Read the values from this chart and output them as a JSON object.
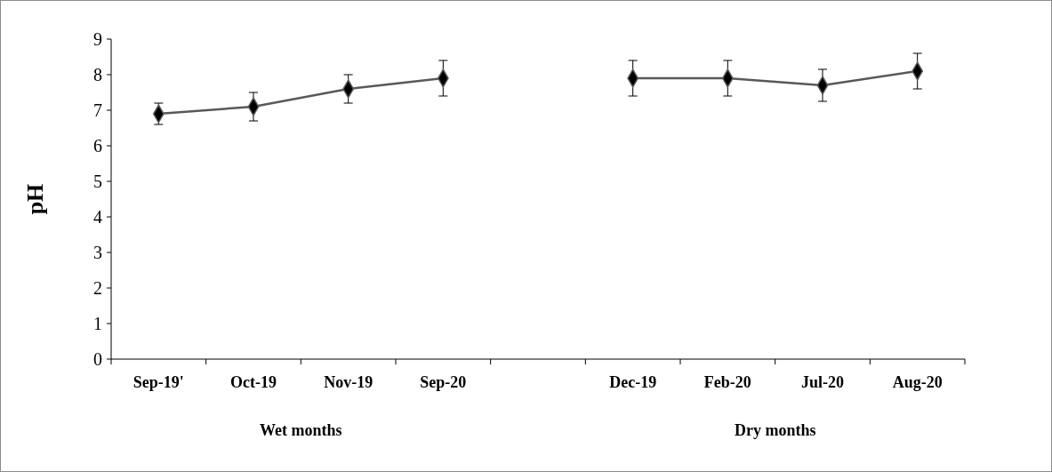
{
  "chart_data": {
    "type": "line",
    "ylabel": "pH",
    "categories": [
      "Sep-19'",
      "Oct-19",
      "Nov-19",
      "Sep-20",
      null,
      "Dec-19",
      "Feb-20",
      "Jul-20",
      "Aug-20"
    ],
    "series": [
      {
        "color": "#595959",
        "values": [
          6.9,
          7.1,
          7.6,
          7.9,
          null,
          7.9,
          7.9,
          7.7,
          8.1
        ],
        "errors": [
          0.3,
          0.4,
          0.4,
          0.5,
          null,
          0.5,
          0.5,
          0.45,
          0.5
        ]
      }
    ],
    "ylim": [
      0,
      9
    ],
    "yticks": [
      0,
      1,
      2,
      3,
      4,
      5,
      6,
      7,
      8,
      9
    ],
    "grid": false,
    "marker": "diamond",
    "line_style": "solid",
    "annotations": [
      "Wet months",
      "Dry months"
    ]
  }
}
